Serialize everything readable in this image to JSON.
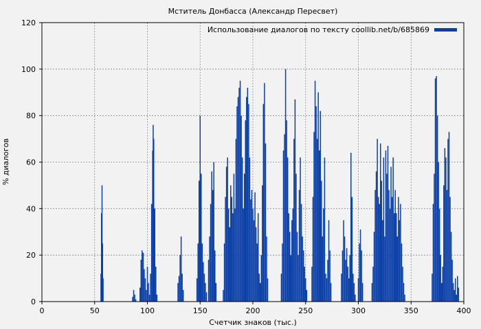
{
  "chart_data": {
    "type": "bar",
    "title": "Мститель Донбасса (Александр Пересвет)",
    "xlabel": "Счетчик знаков (тыс.)",
    "ylabel": "% диалогов",
    "xlim": [
      0,
      400
    ],
    "ylim": [
      0,
      120
    ],
    "x_ticks": [
      "0",
      "50",
      "100",
      "150",
      "200",
      "250",
      "300",
      "350",
      "400"
    ],
    "y_ticks": [
      "0",
      "20",
      "40",
      "60",
      "80",
      "100",
      "120"
    ],
    "grid": true,
    "legend_position": "top-right",
    "series": [
      {
        "name": "Использование диалогов по тексту coollib.net/b/685869",
        "color": "#0a3fa8",
        "points": [
          [
            56,
            12
          ],
          [
            56.5,
            38
          ],
          [
            57,
            50
          ],
          [
            57.5,
            25
          ],
          [
            58,
            10
          ],
          [
            86,
            2
          ],
          [
            87,
            5
          ],
          [
            88,
            3
          ],
          [
            89,
            1
          ],
          [
            93,
            6
          ],
          [
            94,
            18
          ],
          [
            95,
            22
          ],
          [
            96,
            21
          ],
          [
            97,
            14
          ],
          [
            98,
            10
          ],
          [
            99,
            5
          ],
          [
            100,
            15
          ],
          [
            101,
            8
          ],
          [
            102,
            3
          ],
          [
            103,
            12
          ],
          [
            104,
            42
          ],
          [
            105,
            65
          ],
          [
            105.5,
            76
          ],
          [
            106,
            70
          ],
          [
            107,
            40
          ],
          [
            108,
            15
          ],
          [
            109,
            3
          ],
          [
            129,
            8
          ],
          [
            130,
            11
          ],
          [
            131,
            20
          ],
          [
            132,
            28
          ],
          [
            133,
            12
          ],
          [
            134,
            5
          ],
          [
            147,
            10
          ],
          [
            148,
            25
          ],
          [
            149,
            52
          ],
          [
            150,
            80
          ],
          [
            151,
            55
          ],
          [
            152,
            25
          ],
          [
            153,
            17
          ],
          [
            154,
            12
          ],
          [
            155,
            8
          ],
          [
            156,
            4
          ],
          [
            158,
            18
          ],
          [
            159,
            28
          ],
          [
            160,
            42
          ],
          [
            161,
            56
          ],
          [
            162,
            48
          ],
          [
            163,
            60
          ],
          [
            164,
            22
          ],
          [
            165,
            8
          ],
          [
            172,
            5
          ],
          [
            173,
            25
          ],
          [
            174,
            45
          ],
          [
            175,
            58
          ],
          [
            176,
            62
          ],
          [
            177,
            40
          ],
          [
            178,
            32
          ],
          [
            179,
            50
          ],
          [
            180,
            45
          ],
          [
            181,
            38
          ],
          [
            182,
            55
          ],
          [
            183,
            40
          ],
          [
            184,
            70
          ],
          [
            185,
            84
          ],
          [
            186,
            88
          ],
          [
            187,
            92
          ],
          [
            188,
            95
          ],
          [
            189,
            80
          ],
          [
            190,
            62
          ],
          [
            191,
            40
          ],
          [
            192,
            55
          ],
          [
            193,
            78
          ],
          [
            194,
            88
          ],
          [
            195,
            92
          ],
          [
            196,
            85
          ],
          [
            197,
            62
          ],
          [
            198,
            44
          ],
          [
            199,
            48
          ],
          [
            200,
            40
          ],
          [
            201,
            35
          ],
          [
            202,
            47
          ],
          [
            203,
            32
          ],
          [
            204,
            25
          ],
          [
            205,
            38
          ],
          [
            206,
            12
          ],
          [
            207,
            8
          ],
          [
            208,
            20
          ],
          [
            209,
            50
          ],
          [
            210,
            85
          ],
          [
            211,
            94
          ],
          [
            212,
            68
          ],
          [
            213,
            28
          ],
          [
            214,
            10
          ],
          [
            227,
            12
          ],
          [
            228,
            25
          ],
          [
            229,
            65
          ],
          [
            230,
            72
          ],
          [
            231,
            100
          ],
          [
            232,
            78
          ],
          [
            233,
            62
          ],
          [
            234,
            38
          ],
          [
            235,
            30
          ],
          [
            236,
            20
          ],
          [
            237,
            35
          ],
          [
            238,
            40
          ],
          [
            239,
            70
          ],
          [
            240,
            87
          ],
          [
            241,
            55
          ],
          [
            242,
            30
          ],
          [
            243,
            20
          ],
          [
            244,
            48
          ],
          [
            245,
            62
          ],
          [
            246,
            42
          ],
          [
            247,
            28
          ],
          [
            248,
            22
          ],
          [
            249,
            15
          ],
          [
            250,
            10
          ],
          [
            251,
            5
          ],
          [
            256,
            15
          ],
          [
            257,
            45
          ],
          [
            258,
            73
          ],
          [
            259,
            95
          ],
          [
            260,
            84
          ],
          [
            261,
            70
          ],
          [
            262,
            90
          ],
          [
            263,
            65
          ],
          [
            264,
            82
          ],
          [
            265,
            52
          ],
          [
            266,
            28
          ],
          [
            267,
            40
          ],
          [
            268,
            62
          ],
          [
            269,
            12
          ],
          [
            270,
            10
          ],
          [
            271,
            18
          ],
          [
            272,
            35
          ],
          [
            273,
            22
          ],
          [
            274,
            8
          ],
          [
            284,
            12
          ],
          [
            285,
            22
          ],
          [
            286,
            35
          ],
          [
            287,
            28
          ],
          [
            288,
            18
          ],
          [
            289,
            23
          ],
          [
            290,
            15
          ],
          [
            291,
            10
          ],
          [
            292,
            20
          ],
          [
            293,
            64
          ],
          [
            294,
            45
          ],
          [
            295,
            12
          ],
          [
            296,
            8
          ],
          [
            297,
            3
          ],
          [
            300,
            10
          ],
          [
            301,
            25
          ],
          [
            302,
            31
          ],
          [
            303,
            22
          ],
          [
            304,
            8
          ],
          [
            313,
            8
          ],
          [
            314,
            15
          ],
          [
            315,
            30
          ],
          [
            316,
            48
          ],
          [
            317,
            56
          ],
          [
            318,
            70
          ],
          [
            319,
            45
          ],
          [
            320,
            42
          ],
          [
            321,
            68
          ],
          [
            322,
            52
          ],
          [
            323,
            35
          ],
          [
            324,
            62
          ],
          [
            325,
            28
          ],
          [
            326,
            65
          ],
          [
            327,
            55
          ],
          [
            328,
            67
          ],
          [
            329,
            48
          ],
          [
            330,
            40
          ],
          [
            331,
            58
          ],
          [
            332,
            45
          ],
          [
            333,
            62
          ],
          [
            334,
            38
          ],
          [
            335,
            48
          ],
          [
            336,
            38
          ],
          [
            337,
            28
          ],
          [
            338,
            45
          ],
          [
            339,
            35
          ],
          [
            340,
            42
          ],
          [
            341,
            25
          ],
          [
            342,
            15
          ],
          [
            343,
            8
          ],
          [
            344,
            3
          ],
          [
            370,
            12
          ],
          [
            371,
            42
          ],
          [
            372,
            55
          ],
          [
            373,
            96
          ],
          [
            374,
            97
          ],
          [
            375,
            80
          ],
          [
            376,
            60
          ],
          [
            377,
            40
          ],
          [
            378,
            20
          ],
          [
            379,
            8
          ],
          [
            380,
            15
          ],
          [
            381,
            50
          ],
          [
            382,
            66
          ],
          [
            383,
            62
          ],
          [
            384,
            48
          ],
          [
            385,
            70
          ],
          [
            386,
            73
          ],
          [
            387,
            45
          ],
          [
            388,
            30
          ],
          [
            389,
            18
          ],
          [
            390,
            8
          ],
          [
            391,
            5
          ],
          [
            392,
            10
          ],
          [
            393,
            3
          ],
          [
            394,
            11
          ],
          [
            395,
            6
          ]
        ]
      }
    ]
  }
}
